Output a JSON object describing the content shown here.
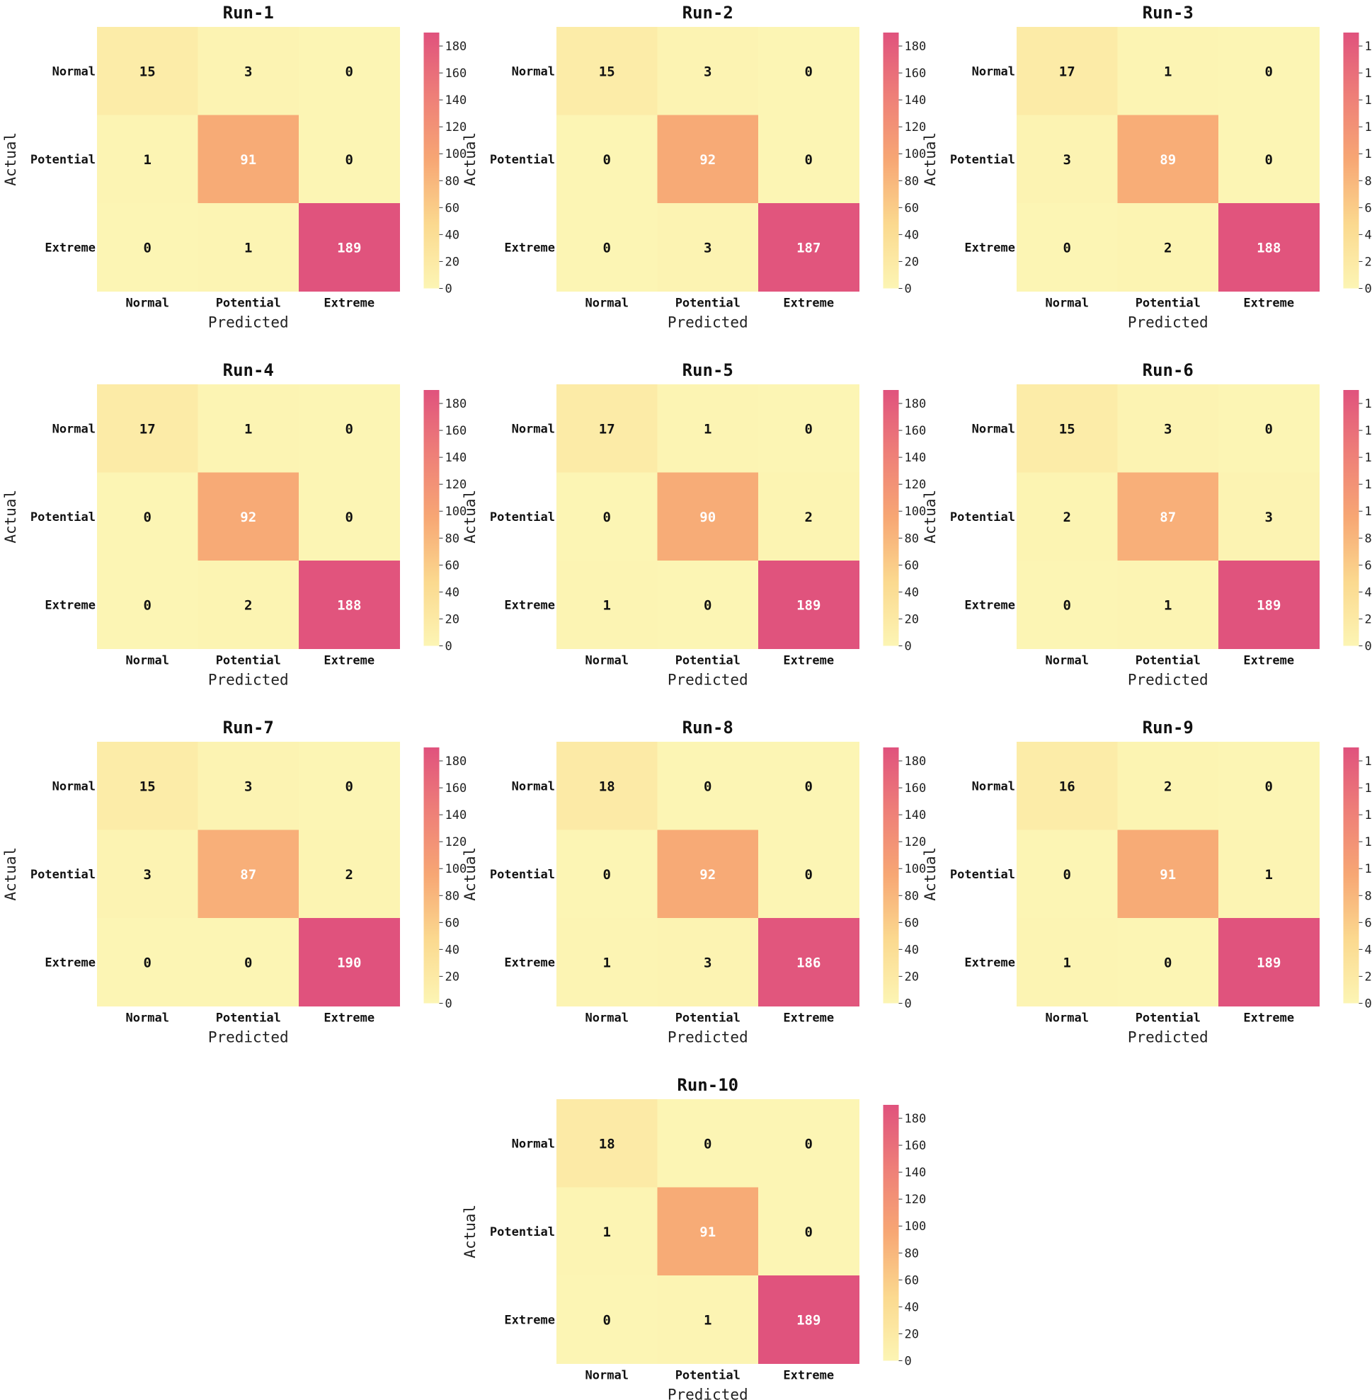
{
  "chart_data": {
    "type": "heatmap",
    "row_categories": [
      "Normal",
      "Potential",
      "Extreme"
    ],
    "col_categories": [
      "Normal",
      "Potential",
      "Extreme"
    ],
    "xlabel": "Predicted",
    "ylabel": "Actual",
    "colorbar": {
      "ticks": [
        "0",
        "20",
        "40",
        "60",
        "80",
        "100",
        "120",
        "140",
        "160",
        "180"
      ],
      "vmin": 0,
      "vmax": 190
    },
    "colors": {
      "low": "#fcf5b4",
      "mid": "#f7a774",
      "high": "#e0527d"
    },
    "runs": [
      {
        "title": "Run-1",
        "matrix": [
          [
            15,
            3,
            0
          ],
          [
            1,
            91,
            0
          ],
          [
            0,
            1,
            189
          ]
        ]
      },
      {
        "title": "Run-2",
        "matrix": [
          [
            15,
            3,
            0
          ],
          [
            0,
            92,
            0
          ],
          [
            0,
            3,
            187
          ]
        ]
      },
      {
        "title": "Run-3",
        "matrix": [
          [
            17,
            1,
            0
          ],
          [
            3,
            89,
            0
          ],
          [
            0,
            2,
            188
          ]
        ]
      },
      {
        "title": "Run-4",
        "matrix": [
          [
            17,
            1,
            0
          ],
          [
            0,
            92,
            0
          ],
          [
            0,
            2,
            188
          ]
        ]
      },
      {
        "title": "Run-5",
        "matrix": [
          [
            17,
            1,
            0
          ],
          [
            0,
            90,
            2
          ],
          [
            1,
            0,
            189
          ]
        ]
      },
      {
        "title": "Run-6",
        "matrix": [
          [
            15,
            3,
            0
          ],
          [
            2,
            87,
            3
          ],
          [
            0,
            1,
            189
          ]
        ]
      },
      {
        "title": "Run-7",
        "matrix": [
          [
            15,
            3,
            0
          ],
          [
            3,
            87,
            2
          ],
          [
            0,
            0,
            190
          ]
        ]
      },
      {
        "title": "Run-8",
        "matrix": [
          [
            18,
            0,
            0
          ],
          [
            0,
            92,
            0
          ],
          [
            1,
            3,
            186
          ]
        ]
      },
      {
        "title": "Run-9",
        "matrix": [
          [
            16,
            2,
            0
          ],
          [
            0,
            91,
            1
          ],
          [
            1,
            0,
            189
          ]
        ]
      },
      {
        "title": "Run-10",
        "matrix": [
          [
            18,
            0,
            0
          ],
          [
            1,
            91,
            0
          ],
          [
            0,
            1,
            189
          ]
        ]
      }
    ]
  }
}
